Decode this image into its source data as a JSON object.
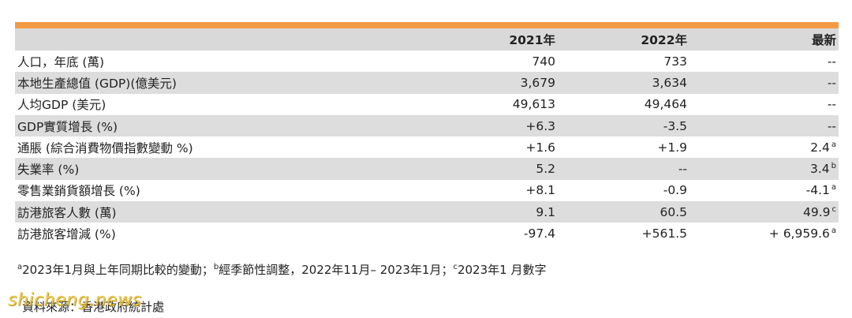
{
  "table": {
    "headers": {
      "label": "",
      "y2021": "2021年",
      "y2022": "2022年",
      "latest": "最新"
    },
    "rows": [
      {
        "label": "人口，年底 (萬)",
        "y2021": "740",
        "y2022": "733",
        "latest": "--",
        "latest_sup": ""
      },
      {
        "label": "本地生產總值 (GDP)(億美元)",
        "y2021": "3,679",
        "y2022": "3,634",
        "latest": "--",
        "latest_sup": ""
      },
      {
        "label": "人均GDP (美元)",
        "y2021": "49,613",
        "y2022": "49,464",
        "latest": "--",
        "latest_sup": ""
      },
      {
        "label": "GDP實質增長 (%)",
        "y2021": "+6.3",
        "y2022": "-3.5",
        "latest": "--",
        "latest_sup": ""
      },
      {
        "label": "通脹 (綜合消費物價指數變動 %)",
        "y2021": "+1.6",
        "y2022": "+1.9",
        "latest": "2.4",
        "latest_sup": "a"
      },
      {
        "label": "失業率 (%)",
        "y2021": "5.2",
        "y2022": "--",
        "latest": "3.4",
        "latest_sup": "b"
      },
      {
        "label": "零售業銷貨額增長 (%)",
        "y2021": "+8.1",
        "y2022": "-0.9",
        "latest": "-4.1",
        "latest_sup": "a"
      },
      {
        "label": "訪港旅客人數 (萬)",
        "y2021": "9.1",
        "y2022": "60.5",
        "latest": "49.9",
        "latest_sup": "c"
      },
      {
        "label": "訪港旅客增減 (%)",
        "y2021": "-97.4",
        "y2022": "+561.5",
        "latest": "+ 6,959.6",
        "latest_sup": "a"
      }
    ]
  },
  "footnote": {
    "a_mark": "a",
    "a_text": "2023年1月與上年同期比較的變動；",
    "b_mark": "b",
    "b_text": "經季節性調整，2022年11月– 2023年1月；",
    "c_mark": "c",
    "c_text": "2023年1 月數字"
  },
  "source": "資料來源：香港政府統計處",
  "watermark": "shicheng.news",
  "colors": {
    "accent_bar": "#f39a45",
    "row_shade": "#dddddd",
    "watermark": "#e8c43a"
  }
}
